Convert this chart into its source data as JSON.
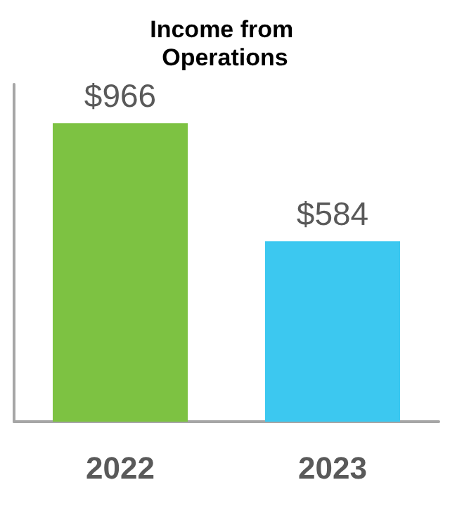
{
  "chart_data": {
    "type": "bar",
    "title": "Income from Operations",
    "categories": [
      "2022",
      "2023"
    ],
    "values": [
      966,
      584
    ],
    "colors": [
      "#7dc242",
      "#3cc8f0"
    ],
    "value_labels": [
      "$966",
      "$584"
    ],
    "grid": false
  }
}
